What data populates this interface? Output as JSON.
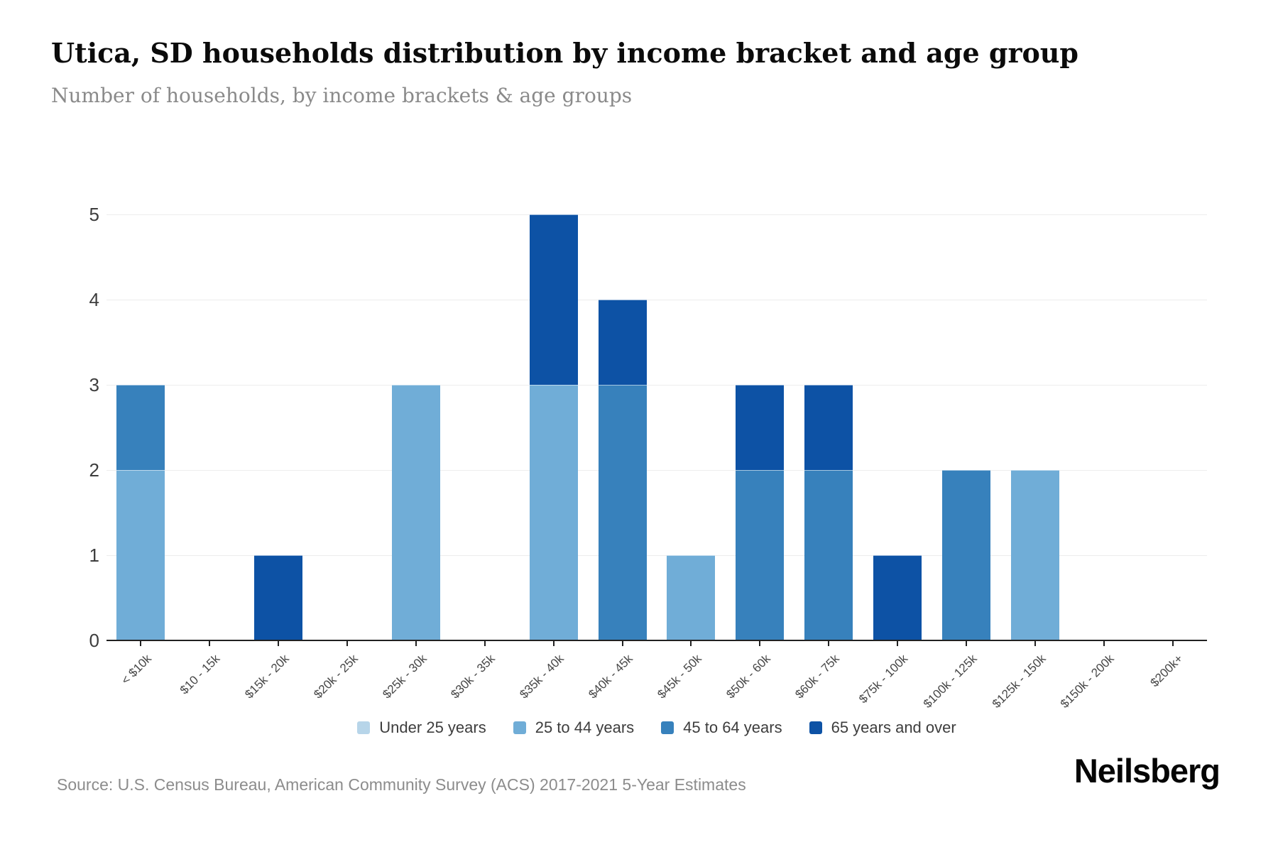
{
  "header": {
    "title": "Utica, SD households distribution by income bracket and age group",
    "subtitle": "Number of households, by income brackets & age groups"
  },
  "footer": {
    "source": "Source: U.S. Census Bureau, American Community Survey (ACS) 2017-2021 5-Year Estimates",
    "brand": "Neilsberg"
  },
  "chart_data": {
    "type": "bar",
    "stacked": true,
    "title": "Utica, SD households distribution by income bracket and age group",
    "subtitle": "Number of households, by income brackets & age groups",
    "categories": [
      "< $10k",
      "$10 - 15k",
      "$15k - 20k",
      "$20k - 25k",
      "$25k - 30k",
      "$30k - 35k",
      "$35k - 40k",
      "$40k - 45k",
      "$45k - 50k",
      "$50k - 60k",
      "$60k - 75k",
      "$75k - 100k",
      "$100k - 125k",
      "$125k - 150k",
      "$150k - 200k",
      "$200k+"
    ],
    "series": [
      {
        "name": "Under 25 years",
        "color": "#b7d5e9",
        "values": [
          0,
          0,
          0,
          0,
          0,
          0,
          0,
          0,
          0,
          0,
          0,
          0,
          0,
          0,
          0,
          0
        ]
      },
      {
        "name": "25 to 44 years",
        "color": "#70add7",
        "values": [
          2,
          0,
          0,
          0,
          3,
          0,
          3,
          0,
          1,
          0,
          0,
          0,
          0,
          2,
          0,
          0
        ]
      },
      {
        "name": "45 to 64 years",
        "color": "#3781bc",
        "values": [
          1,
          0,
          0,
          0,
          0,
          0,
          0,
          3,
          0,
          2,
          2,
          0,
          2,
          0,
          0,
          0
        ]
      },
      {
        "name": "65 years and over",
        "color": "#0d52a5",
        "values": [
          0,
          0,
          1,
          0,
          0,
          0,
          2,
          1,
          0,
          1,
          1,
          1,
          0,
          0,
          0,
          0
        ]
      }
    ],
    "xlabel": "",
    "ylabel": "",
    "ylim": [
      0,
      5
    ],
    "yticks": [
      0,
      1,
      2,
      3,
      4,
      5
    ],
    "grid": true,
    "legend_position": "bottom",
    "axis_color": "#212121",
    "gridline_color": "#ededed"
  }
}
